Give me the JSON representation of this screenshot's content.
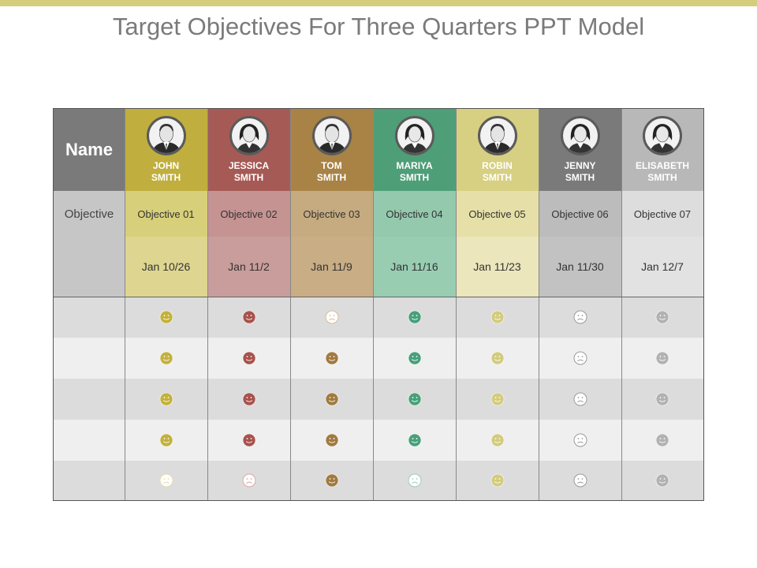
{
  "title": "Target Objectives For Three Quarters PPT Model",
  "header": {
    "name_label": "Name",
    "objective_label": "Objective"
  },
  "colors": {
    "top_bar": "#d4cd7c",
    "row_odd": "#dcdcdc",
    "row_even": "#efefef"
  },
  "people": [
    {
      "first": "JOHN",
      "last": "SMITH",
      "objective": "Objective 01",
      "date": "Jan 10/26",
      "head": "#c0ae3e",
      "obj_bg": "#d8cf7a",
      "date_bg": "#ded690",
      "smile": "#c3b13d",
      "smile_light": "#e4dcb4",
      "moods": [
        "happy",
        "happy",
        "happy",
        "happy",
        "sad"
      ],
      "avatar": "man-icon"
    },
    {
      "first": "JESSICA",
      "last": "SMITH",
      "objective": "Objective 02",
      "date": "Jan 11/2",
      "head": "#a65a55",
      "obj_bg": "#c59392",
      "date_bg": "#c99d9b",
      "smile": "#a8524d",
      "smile_light": "#d8a9a7",
      "moods": [
        "happy",
        "happy",
        "happy",
        "happy",
        "sad"
      ],
      "avatar": "woman-icon"
    },
    {
      "first": "TOM",
      "last": "SMITH",
      "objective": "Objective 03",
      "date": "Jan 11/9",
      "head": "#a88345",
      "obj_bg": "#c6ab80",
      "date_bg": "#c8ad85",
      "smile": "#a17a40",
      "smile_light": "#d6bd96",
      "moods": [
        "sad",
        "happy",
        "happy",
        "happy",
        "happy"
      ],
      "avatar": "man-icon"
    },
    {
      "first": "MARIYA",
      "last": "SMITH",
      "objective": "Objective 04",
      "date": "Jan 11/16",
      "head": "#4e9e78",
      "obj_bg": "#94c9ae",
      "date_bg": "#98cdb2",
      "smile": "#48a07a",
      "smile_light": "#9fcdb6",
      "moods": [
        "happy",
        "happy",
        "happy",
        "happy",
        "sad"
      ],
      "avatar": "woman-icon"
    },
    {
      "first": "ROBIN",
      "last": "SMITH",
      "objective": "Objective 05",
      "date": "Jan 11/23",
      "head": "#d7cf82",
      "obj_bg": "#e6e0a8",
      "date_bg": "#ebe6bc",
      "smile": "#d3cb7e",
      "smile_light": "#e7e2b4",
      "moods": [
        "happy",
        "happy",
        "happy",
        "happy",
        "happy"
      ],
      "avatar": "man-icon"
    },
    {
      "first": "JENNY",
      "last": "SMITH",
      "objective": "Objective 06",
      "date": "Jan 11/30",
      "head": "#7a7a7a",
      "obj_bg": "#bcbcbc",
      "date_bg": "#c2c2c2",
      "smile": "#666666",
      "smile_light": "#9a9a9a",
      "moods": [
        "sad",
        "sad",
        "sad",
        "sad",
        "sad"
      ],
      "avatar": "woman-icon"
    },
    {
      "first": "ELISABETH",
      "last": "SMITH",
      "objective": "Objective 07",
      "date": "Jan 12/7",
      "head": "#b8b8b8",
      "obj_bg": "#dddddd",
      "date_bg": "#e2e2e2",
      "smile": "#b2b2b2",
      "smile_light": "#c8c8c8",
      "moods": [
        "happy",
        "happy",
        "happy",
        "happy",
        "happy"
      ],
      "avatar": "woman-icon"
    }
  ]
}
